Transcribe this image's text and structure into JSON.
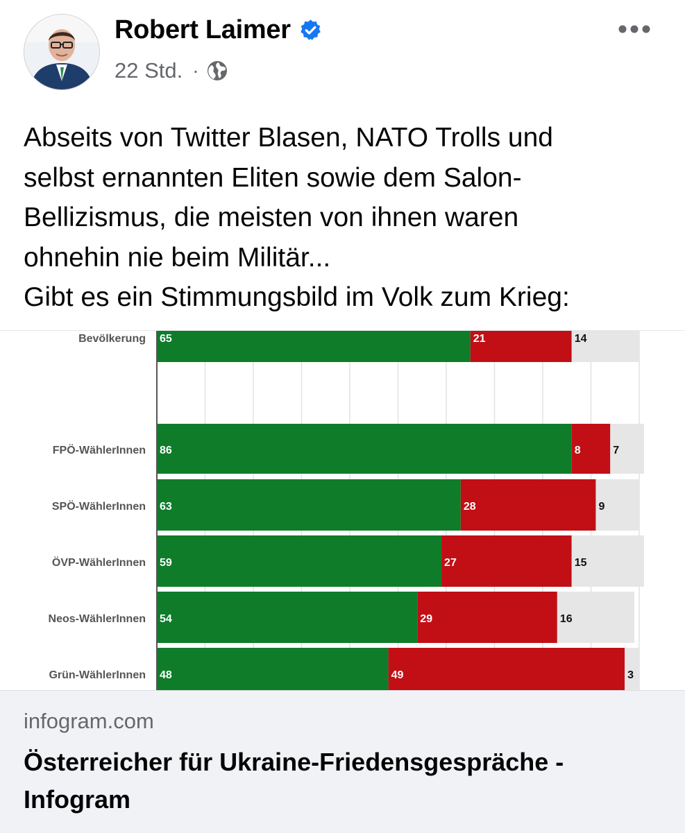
{
  "post": {
    "author": "Robert Laimer",
    "timestamp": "22 Std.",
    "separator": "·",
    "audience_icon": "globe-icon",
    "text_lines": [
      "Abseits von Twitter Blasen, NATO Trolls und",
      "selbst ernannten Eliten sowie dem Salon-",
      "Bellizismus, die meisten von ihnen waren",
      "ohnehin nie beim Militär...",
      "Gibt es ein Stimmungsbild im Volk zum Krieg:"
    ]
  },
  "link_preview": {
    "domain": "infogram.com",
    "title_lines": [
      "Österreicher für Ukraine-Friedensgespräche -",
      "Infogram"
    ]
  },
  "colors": {
    "green": "#0f7c2a",
    "red": "#c10f15",
    "gray": "#e6e6e6",
    "verified": "#1877f2"
  },
  "chart_data": {
    "type": "bar",
    "orientation": "horizontal",
    "stacked": true,
    "xlim": [
      0,
      100
    ],
    "grid": true,
    "categories": [
      "Bevölkerung",
      "FPÖ-WählerInnen",
      "SPÖ-WählerInnen",
      "ÖVP-WählerInnen",
      "Neos-WählerInnen",
      "Grün-WählerInnen"
    ],
    "series": [
      {
        "name": "green",
        "values": [
          65,
          86,
          63,
          59,
          54,
          48
        ]
      },
      {
        "name": "red",
        "values": [
          21,
          8,
          28,
          27,
          29,
          49
        ]
      },
      {
        "name": "gray",
        "values": [
          14,
          7,
          9,
          15,
          16,
          3
        ]
      }
    ]
  }
}
